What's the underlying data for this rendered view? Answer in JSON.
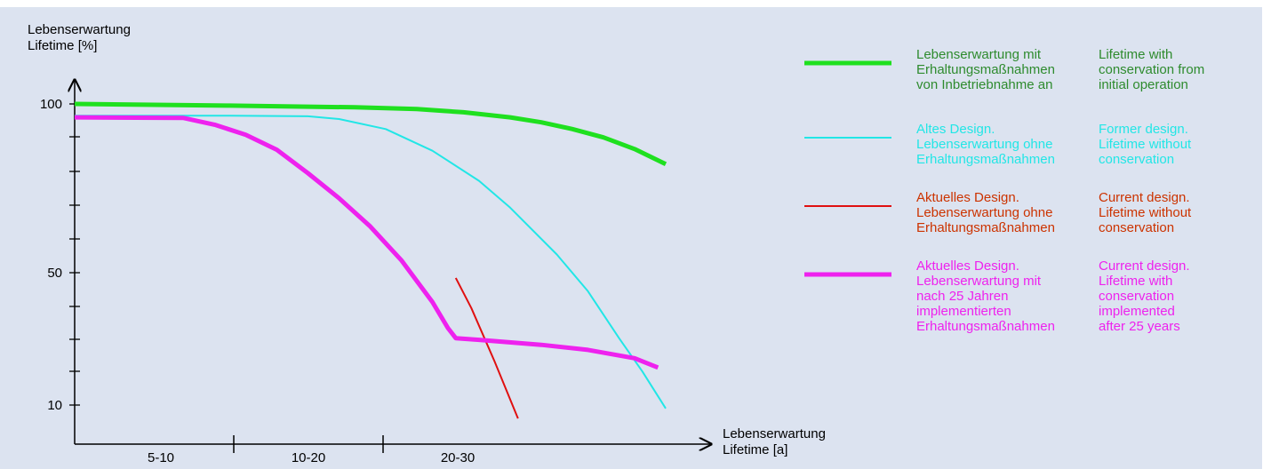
{
  "chart_data": {
    "type": "line",
    "y_axis": {
      "title_lines": [
        "Lebenserwartung",
        "Lifetime [%]"
      ],
      "tick_labels": [
        "100",
        "50",
        "10"
      ],
      "ylim": [
        0,
        100
      ]
    },
    "x_axis": {
      "title_lines": [
        "Lebenserwartung",
        "Lifetime [a]"
      ],
      "categories": [
        "5-10",
        "10-20",
        "20-30"
      ]
    },
    "series": [
      {
        "key": "green",
        "color": "#1fe01f",
        "stroke": 5,
        "legend_de": "Lebenserwartung mit\nErhaltungsmaßnahmen\nvon Inbetriebnahme an",
        "legend_en": "Lifetime with\nconservation from\ninitial operation",
        "legend_color": "#2e8b2e",
        "points": [
          [
            0,
            100
          ],
          [
            10,
            99.5
          ],
          [
            18,
            99
          ],
          [
            22,
            98.5
          ],
          [
            25,
            97.5
          ],
          [
            28,
            96
          ],
          [
            30,
            94.5
          ],
          [
            32,
            92.5
          ],
          [
            34,
            90
          ],
          [
            36,
            86.5
          ],
          [
            38,
            82
          ]
        ]
      },
      {
        "key": "cyan",
        "color": "#22e6e6",
        "stroke": 2,
        "legend_de": "Altes Design.\nLebenserwartung ohne\nErhaltungsmaßnahmen",
        "legend_en": "Former design.\nLifetime without\nconservation",
        "legend_color": "#22e6e6",
        "points": [
          [
            0,
            96.5
          ],
          [
            5,
            96.5
          ],
          [
            10,
            96.5
          ],
          [
            15,
            96.3
          ],
          [
            17,
            95.5
          ],
          [
            20,
            92.5
          ],
          [
            23,
            86
          ],
          [
            26,
            77
          ],
          [
            28,
            69
          ],
          [
            31,
            55
          ],
          [
            33,
            44
          ],
          [
            35,
            30
          ],
          [
            36.5,
            20
          ],
          [
            38,
            9
          ]
        ]
      },
      {
        "key": "red",
        "color": "#e01010",
        "stroke": 2,
        "legend_de": "Aktuelles Design.\nLebenserwartung ohne\nErhaltungsmaßnahmen",
        "legend_en": "Current design.\nLifetime without\nconservation",
        "legend_color": "#cc3300",
        "points": [
          [
            24.5,
            48
          ],
          [
            25.5,
            39
          ],
          [
            27,
            23
          ],
          [
            28.5,
            6
          ]
        ]
      },
      {
        "key": "magenta",
        "color": "#ee22ee",
        "stroke": 5,
        "legend_de": "Aktuelles Design.\nLebenserwartung mit\nnach 25 Jahren\nimplementierten\nErhaltungsmaßnahmen",
        "legend_en": "Current design.\nLifetime with\nconservation\nimplemented\nafter 25 years",
        "legend_color": "#ee22ee",
        "points": [
          [
            0,
            96
          ],
          [
            7,
            95.8
          ],
          [
            9,
            93.8
          ],
          [
            11,
            90.8
          ],
          [
            13,
            86.3
          ],
          [
            15,
            79.3
          ],
          [
            17,
            71.8
          ],
          [
            19,
            63.4
          ],
          [
            21,
            53.3
          ],
          [
            23,
            40.8
          ],
          [
            24,
            33
          ],
          [
            24.5,
            30
          ],
          [
            26,
            29.5
          ],
          [
            30,
            28
          ],
          [
            33,
            26.5
          ],
          [
            36,
            24
          ],
          [
            37.5,
            21.2
          ]
        ]
      }
    ]
  }
}
